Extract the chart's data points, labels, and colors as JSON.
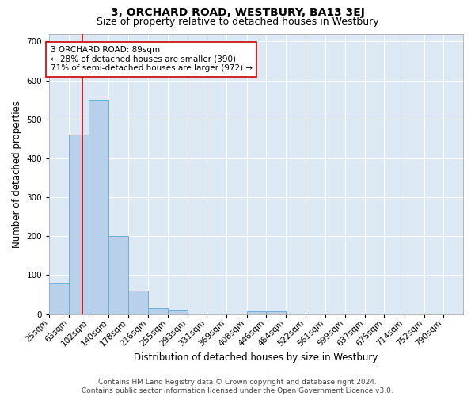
{
  "title": "3, ORCHARD ROAD, WESTBURY, BA13 3EJ",
  "subtitle": "Size of property relative to detached houses in Westbury",
  "xlabel": "Distribution of detached houses by size in Westbury",
  "ylabel": "Number of detached properties",
  "footer_line1": "Contains HM Land Registry data © Crown copyright and database right 2024.",
  "footer_line2": "Contains public sector information licensed under the Open Government Licence v3.0.",
  "bin_labels": [
    "25sqm",
    "63sqm",
    "102sqm",
    "140sqm",
    "178sqm",
    "216sqm",
    "255sqm",
    "293sqm",
    "331sqm",
    "369sqm",
    "408sqm",
    "446sqm",
    "484sqm",
    "522sqm",
    "561sqm",
    "599sqm",
    "637sqm",
    "675sqm",
    "714sqm",
    "752sqm",
    "790sqm"
  ],
  "bin_edges": [
    25,
    63,
    102,
    140,
    178,
    216,
    255,
    293,
    331,
    369,
    408,
    446,
    484,
    522,
    561,
    599,
    637,
    675,
    714,
    752,
    790,
    828
  ],
  "bar_values": [
    80,
    460,
    550,
    200,
    60,
    15,
    10,
    0,
    0,
    0,
    8,
    8,
    0,
    0,
    0,
    0,
    0,
    0,
    0,
    2,
    0
  ],
  "bar_color": "#b8d0ea",
  "bar_edge_color": "#6baed6",
  "property_size": 89,
  "red_line_color": "#cc0000",
  "annotation_text": "3 ORCHARD ROAD: 89sqm\n← 28% of detached houses are smaller (390)\n71% of semi-detached houses are larger (972) →",
  "annotation_box_facecolor": "#ffffff",
  "annotation_box_edgecolor": "#cc0000",
  "ylim": [
    0,
    720
  ],
  "yticks": [
    0,
    100,
    200,
    300,
    400,
    500,
    600,
    700
  ],
  "bg_color": "#dce9f5",
  "grid_color": "#ffffff",
  "fig_facecolor": "#ffffff",
  "title_fontsize": 10,
  "subtitle_fontsize": 9,
  "axis_label_fontsize": 8.5,
  "tick_fontsize": 7.5,
  "footer_fontsize": 6.5,
  "annotation_fontsize": 7.5
}
